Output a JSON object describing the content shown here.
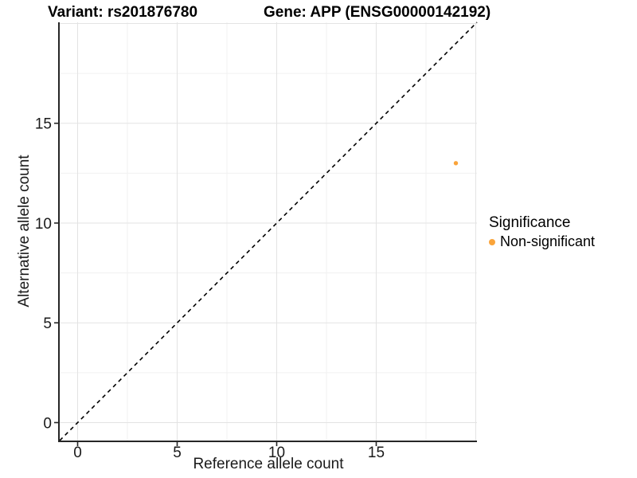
{
  "titles": {
    "left": "Variant: rs201876780",
    "right": "Gene: APP (ENSG00000142192)"
  },
  "chart_data": {
    "type": "scatter",
    "xlabel": "Reference allele count",
    "ylabel": "Alternative allele count",
    "xlim": [
      -0.9,
      20.06
    ],
    "ylim": [
      -0.9,
      20.06
    ],
    "x_ticks": [
      0,
      5,
      10,
      15
    ],
    "y_ticks": [
      0,
      5,
      10,
      15
    ],
    "major_gridlines": [
      0,
      5,
      10,
      15,
      20
    ],
    "minor_gridlines": [
      2.5,
      7.5,
      12.5,
      17.5
    ],
    "grid": true,
    "points": [
      {
        "x": 19,
        "y": 13,
        "series": "Non-significant",
        "color": "#FAA43A"
      }
    ],
    "identity_line": {
      "slope": 1,
      "intercept": 0,
      "style": "dashed",
      "color": "#000000"
    },
    "legend": {
      "title": "Significance",
      "position": "right",
      "items": [
        {
          "label": "Non-significant",
          "color": "#FAA43A"
        }
      ]
    }
  },
  "colors": {
    "point": "#FAA43A",
    "axis_line": "#262626",
    "tick_text": "#1a1a1a",
    "grid_major": "#e3e3e3",
    "grid_minor": "#f1f1f1",
    "background": "#ffffff",
    "dashed_line": "#000000"
  }
}
